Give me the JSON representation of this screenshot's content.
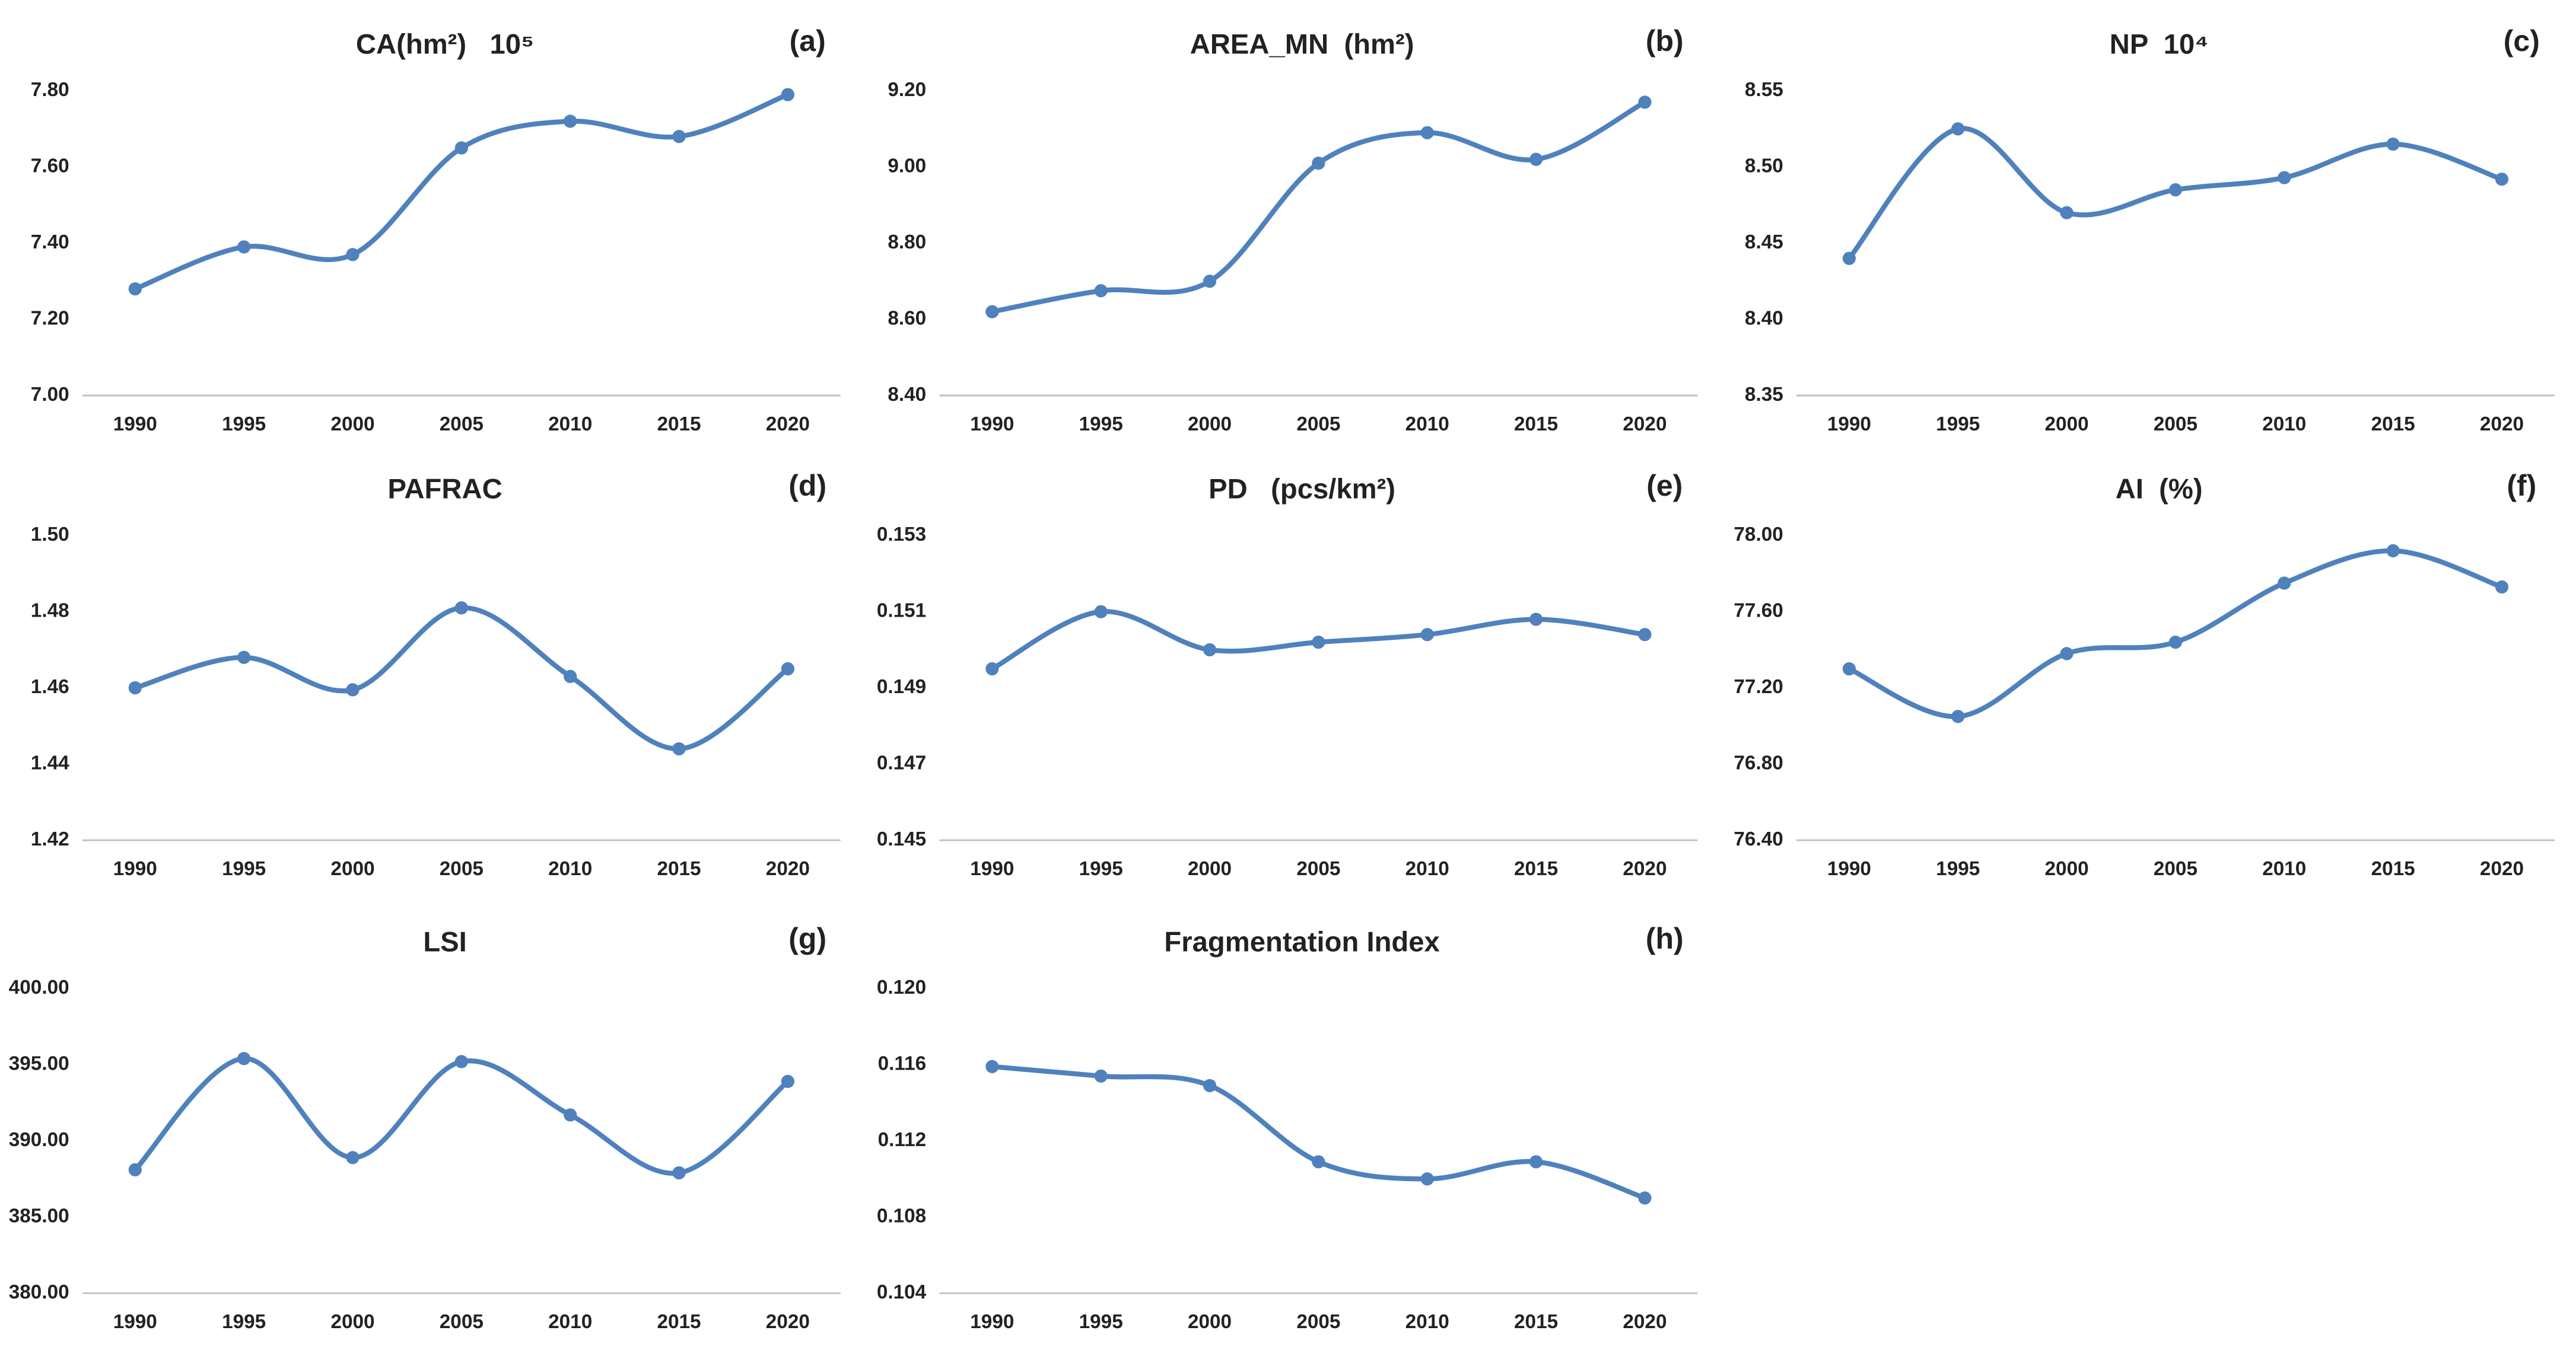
{
  "chart_data": [
    {
      "type": "line",
      "title": "CA(hm²)   10⁵",
      "annotation": "(a)",
      "categories": [
        "1990",
        "1995",
        "2000",
        "2005",
        "2010",
        "2015",
        "2020"
      ],
      "values": [
        7.28,
        7.39,
        7.37,
        7.65,
        7.72,
        7.68,
        7.79
      ],
      "color": "#4f81bd",
      "ylim": [
        7.0,
        7.8
      ],
      "yticks": [
        {
          "value": 7.0,
          "label": "7.00"
        },
        {
          "value": 7.2,
          "label": "7.20"
        },
        {
          "value": 7.4,
          "label": "7.40"
        },
        {
          "value": 7.6,
          "label": "7.60"
        },
        {
          "value": 7.8,
          "label": "7.80"
        }
      ]
    },
    {
      "type": "line",
      "title": "AREA_MN  (hm²)",
      "annotation": "(b)",
      "categories": [
        "1990",
        "1995",
        "2000",
        "2005",
        "2010",
        "2015",
        "2020"
      ],
      "values": [
        8.62,
        8.675,
        8.7,
        9.01,
        9.09,
        9.02,
        9.17
      ],
      "color": "#4f81bd",
      "ylim": [
        8.4,
        9.2
      ],
      "yticks": [
        {
          "value": 8.4,
          "label": "8.40"
        },
        {
          "value": 8.6,
          "label": "8.60"
        },
        {
          "value": 8.8,
          "label": "8.80"
        },
        {
          "value": 9.0,
          "label": "9.00"
        },
        {
          "value": 9.2,
          "label": "9.20"
        }
      ]
    },
    {
      "type": "line",
      "title": "NP  10⁴",
      "annotation": "(c)",
      "categories": [
        "1990",
        "1995",
        "2000",
        "2005",
        "2010",
        "2015",
        "2020"
      ],
      "values": [
        8.44,
        8.525,
        8.47,
        8.485,
        8.493,
        8.515,
        8.492
      ],
      "color": "#4f81bd",
      "ylim": [
        8.35,
        8.55
      ],
      "yticks": [
        {
          "value": 8.35,
          "label": "8.35"
        },
        {
          "value": 8.4,
          "label": "8.40"
        },
        {
          "value": 8.45,
          "label": "8.45"
        },
        {
          "value": 8.5,
          "label": "8.50"
        },
        {
          "value": 8.55,
          "label": "8.55"
        }
      ]
    },
    {
      "type": "line",
      "title": "PAFRAC",
      "annotation": "(d)",
      "categories": [
        "1990",
        "1995",
        "2000",
        "2005",
        "2010",
        "2015",
        "2020"
      ],
      "values": [
        1.46,
        1.468,
        1.4595,
        1.481,
        1.463,
        1.444,
        1.465
      ],
      "color": "#4f81bd",
      "ylim": [
        1.42,
        1.5
      ],
      "yticks": [
        1.42,
        1.44,
        1.46,
        1.48,
        {
          "value": 1.5,
          "label": "1.50"
        }
      ]
    },
    {
      "type": "line",
      "title": "PD   (pcs/km²)",
      "annotation": "(e)",
      "categories": [
        "1990",
        "1995",
        "2000",
        "2005",
        "2010",
        "2015",
        "2020"
      ],
      "values": [
        0.1495,
        0.151,
        0.15,
        0.1502,
        0.1504,
        0.1508,
        0.1504
      ],
      "color": "#4f81bd",
      "ylim": [
        0.145,
        0.153
      ],
      "yticks": [
        0.145,
        0.147,
        0.149,
        0.151,
        0.153
      ]
    },
    {
      "type": "line",
      "title": "AI  (%)",
      "annotation": "(f)",
      "categories": [
        "1990",
        "1995",
        "2000",
        "2005",
        "2010",
        "2015",
        "2020"
      ],
      "values": [
        77.3,
        77.05,
        77.38,
        77.44,
        77.75,
        77.92,
        77.73
      ],
      "color": "#4f81bd",
      "ylim": [
        76.4,
        78.0
      ],
      "yticks": [
        {
          "value": 76.4,
          "label": "76.40"
        },
        {
          "value": 76.8,
          "label": "76.80"
        },
        {
          "value": 77.2,
          "label": "77.20"
        },
        {
          "value": 77.6,
          "label": "77.60"
        },
        {
          "value": 78.0,
          "label": "78.00"
        }
      ]
    },
    {
      "type": "line",
      "title": "LSI",
      "annotation": "(g)",
      "categories": [
        "1990",
        "1995",
        "2000",
        "2005",
        "2010",
        "2015",
        "2020"
      ],
      "values": [
        388.1,
        395.4,
        388.9,
        395.2,
        391.7,
        387.9,
        393.9
      ],
      "color": "#4f81bd",
      "ylim": [
        380,
        400
      ],
      "yticks": [
        {
          "value": 380,
          "label": "380.00"
        },
        {
          "value": 385,
          "label": "385.00"
        },
        {
          "value": 390,
          "label": "390.00"
        },
        {
          "value": 395,
          "label": "395.00"
        },
        {
          "value": 400,
          "label": "400.00"
        }
      ]
    },
    {
      "type": "line",
      "title": "Fragmentation Index",
      "annotation": "(h)",
      "categories": [
        "1990",
        "1995",
        "2000",
        "2005",
        "2010",
        "2015",
        "2020"
      ],
      "values": [
        0.1159,
        0.1154,
        0.1149,
        0.1109,
        0.11,
        0.1109,
        0.109
      ],
      "color": "#4f81bd",
      "ylim": [
        0.104,
        0.12
      ],
      "yticks": [
        0.104,
        0.108,
        0.112,
        0.116,
        {
          "value": 0.12,
          "label": "0.120"
        }
      ]
    }
  ]
}
